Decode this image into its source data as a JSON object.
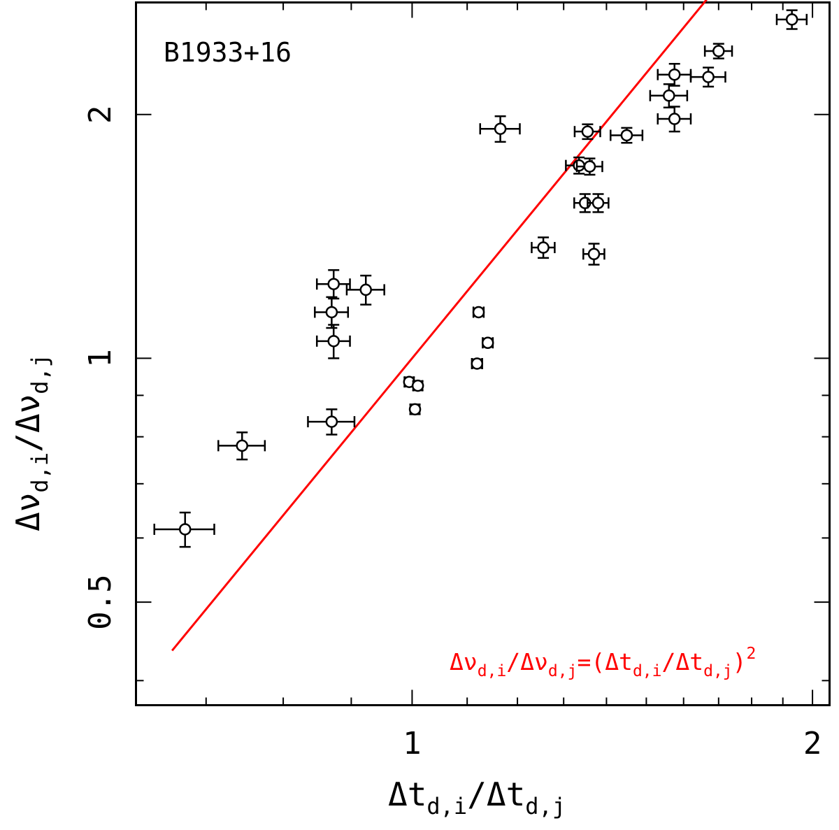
{
  "chart_data": {
    "type": "scatter",
    "title": "B1933+16",
    "xlabel": {
      "base": "Δt",
      "sub1": "d,i",
      "slash": "/",
      "sub2": "d,j"
    },
    "ylabel": {
      "base": "Δν",
      "sub1": "d,i",
      "slash": "/",
      "sub2": "d,j"
    },
    "xscale": "log",
    "yscale": "log",
    "xlim": [
      0.62,
      2.06
    ],
    "ylim": [
      0.373,
      2.75
    ],
    "x_major_ticks": [
      1,
      2
    ],
    "x_tick_labels": [
      "1",
      "2"
    ],
    "x_minor_ticks": [
      0.7,
      0.8,
      0.9,
      1.0,
      1.1,
      1.2,
      1.3,
      1.4,
      1.5,
      1.6,
      1.7,
      1.8,
      1.9,
      2.0
    ],
    "y_major_ticks": [
      0.5,
      1,
      2
    ],
    "y_tick_labels": [
      "0.5",
      "1",
      "2"
    ],
    "y_minor_ticks": [
      0.4,
      0.5,
      0.6,
      0.7,
      0.8,
      0.9,
      1.0,
      2.0
    ],
    "legend": {
      "placement": "bottom-right",
      "color": "#ff0000",
      "parts": [
        "Δν",
        "d,i",
        "/Δν",
        "d,j",
        "=(Δt",
        "d,i",
        "/Δt",
        "d,j",
        ")",
        "2"
      ]
    },
    "title_color": "#0000ff",
    "fit_line": {
      "label": "Δν_d,i/Δν_d,j=(Δt_d,i/Δt_d,j)^2",
      "x_range": [
        0.66,
        1.93
      ],
      "exponent": 2,
      "color": "#ff0000"
    },
    "points": [
      {
        "x": 0.675,
        "y": 0.615,
        "xerr": 0.035,
        "yerr": 0.03
      },
      {
        "x": 0.745,
        "y": 0.78,
        "xerr": 0.03,
        "yerr": 0.03
      },
      {
        "x": 0.87,
        "y": 0.835,
        "xerr": 0.035,
        "yerr": 0.03
      },
      {
        "x": 0.873,
        "y": 1.05,
        "xerr": 0.025,
        "yerr": 0.05
      },
      {
        "x": 0.87,
        "y": 1.14,
        "xerr": 0.025,
        "yerr": 0.05
      },
      {
        "x": 0.873,
        "y": 1.235,
        "xerr": 0.025,
        "yerr": 0.05
      },
      {
        "x": 0.923,
        "y": 1.215,
        "xerr": 0.03,
        "yerr": 0.05
      },
      {
        "x": 0.995,
        "y": 0.935,
        "xerr": 0.008,
        "yerr": 0.012
      },
      {
        "x": 1.01,
        "y": 0.925,
        "xerr": 0.008,
        "yerr": 0.012
      },
      {
        "x": 1.005,
        "y": 0.865,
        "xerr": 0.008,
        "yerr": 0.012
      },
      {
        "x": 1.119,
        "y": 0.985,
        "xerr": 0.01,
        "yerr": 0.012
      },
      {
        "x": 1.14,
        "y": 1.045,
        "xerr": 0.01,
        "yerr": 0.012
      },
      {
        "x": 1.122,
        "y": 1.14,
        "xerr": 0.01,
        "yerr": 0.012
      },
      {
        "x": 1.165,
        "y": 1.92,
        "xerr": 0.04,
        "yerr": 0.07
      },
      {
        "x": 1.255,
        "y": 1.37,
        "xerr": 0.025,
        "yerr": 0.04
      },
      {
        "x": 1.335,
        "y": 1.73,
        "xerr": 0.03,
        "yerr": 0.04
      },
      {
        "x": 1.349,
        "y": 1.555,
        "xerr": 0.025,
        "yerr": 0.04
      },
      {
        "x": 1.355,
        "y": 1.905,
        "xerr": 0.03,
        "yerr": 0.04
      },
      {
        "x": 1.36,
        "y": 1.725,
        "xerr": 0.03,
        "yerr": 0.04
      },
      {
        "x": 1.37,
        "y": 1.345,
        "xerr": 0.025,
        "yerr": 0.04
      },
      {
        "x": 1.38,
        "y": 1.555,
        "xerr": 0.025,
        "yerr": 0.04
      },
      {
        "x": 1.45,
        "y": 1.885,
        "xerr": 0.04,
        "yerr": 0.04
      },
      {
        "x": 1.56,
        "y": 2.11,
        "xerr": 0.05,
        "yerr": 0.07
      },
      {
        "x": 1.575,
        "y": 2.24,
        "xerr": 0.045,
        "yerr": 0.07
      },
      {
        "x": 1.575,
        "y": 1.975,
        "xerr": 0.045,
        "yerr": 0.07
      },
      {
        "x": 1.67,
        "y": 2.225,
        "xerr": 0.05,
        "yerr": 0.06
      },
      {
        "x": 1.7,
        "y": 2.395,
        "xerr": 0.04,
        "yerr": 0.05
      },
      {
        "x": 1.93,
        "y": 2.62,
        "xerr": 0.05,
        "yerr": 0.07
      }
    ]
  }
}
